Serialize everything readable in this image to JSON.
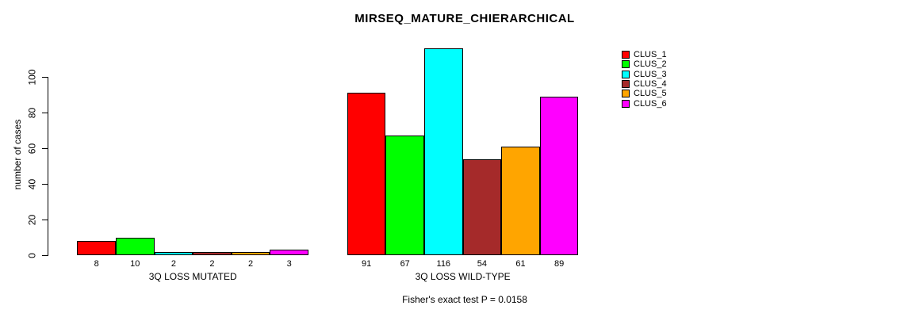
{
  "chart_data": {
    "type": "bar",
    "title": "MIRSEQ_MATURE_CHIERARCHICAL",
    "ylabel": "number of cases",
    "xlabel": "",
    "yticks": [
      0,
      20,
      40,
      60,
      80,
      100
    ],
    "ylim": [
      0,
      116
    ],
    "grid": false,
    "legend_position": "topright",
    "categories": [
      "3Q LOSS MUTATED",
      "3Q LOSS WILD-TYPE"
    ],
    "groups": [
      {
        "label": "3Q LOSS MUTATED",
        "values": [
          8,
          10,
          2,
          2,
          2,
          3
        ]
      },
      {
        "label": "3Q LOSS WILD-TYPE",
        "values": [
          91,
          67,
          116,
          54,
          61,
          89
        ]
      }
    ],
    "series": [
      {
        "name": "CLUS_1",
        "color": "#FF0000",
        "values": [
          8,
          91
        ]
      },
      {
        "name": "CLUS_2",
        "color": "#00FF00",
        "values": [
          10,
          67
        ]
      },
      {
        "name": "CLUS_3",
        "color": "#00FFFF",
        "values": [
          2,
          116
        ]
      },
      {
        "name": "CLUS_4",
        "color": "#A52A2A",
        "values": [
          2,
          54
        ]
      },
      {
        "name": "CLUS_5",
        "color": "#FFA500",
        "values": [
          2,
          61
        ]
      },
      {
        "name": "CLUS_6",
        "color": "#FF00FF",
        "values": [
          3,
          89
        ]
      }
    ],
    "annotation": "Fisher's exact test P = 0.0158",
    "colors": {
      "background": "#FFFFFF",
      "axis": "#000000",
      "bar_border": "#000000"
    }
  }
}
